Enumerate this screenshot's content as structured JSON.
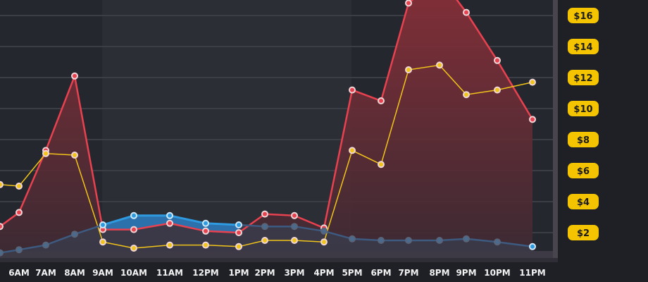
{
  "chart_data": {
    "type": "area",
    "title": "",
    "xlabel": "",
    "ylabel": "",
    "categories": [
      "",
      "6AM",
      "7AM",
      "8AM",
      "9AM",
      "10AM",
      "11AM",
      "12PM",
      "1PM",
      "2PM",
      "3PM",
      "4PM",
      "5PM",
      "6PM",
      "7PM",
      "8PM",
      "9PM",
      "10PM",
      "11PM"
    ],
    "y_ticks": [
      "$2",
      "$4",
      "$6",
      "$8",
      "$10",
      "$12",
      "$14",
      "$16"
    ],
    "y_tick_values": [
      2,
      4,
      6,
      8,
      10,
      12,
      14,
      16
    ],
    "ylim": [
      0,
      17
    ],
    "y_axis_position": "right",
    "grid": true,
    "highlighted_range": [
      "9AM",
      "4PM"
    ],
    "series": [
      {
        "color": "#e8414f",
        "fill": true,
        "values": [
          2.4,
          3.3,
          7.3,
          12.1,
          2.2,
          2.2,
          2.6,
          2.1,
          2.0,
          3.2,
          3.1,
          2.3,
          11.2,
          10.5,
          16.8,
          18.5,
          16.2,
          13.1,
          9.3
        ]
      },
      {
        "color": "#f0c419",
        "fill": false,
        "values": [
          5.1,
          5.0,
          7.1,
          7.0,
          1.4,
          1.0,
          1.2,
          1.2,
          1.1,
          1.5,
          1.5,
          1.4,
          7.3,
          6.4,
          12.5,
          12.8,
          10.9,
          11.2,
          11.7
        ]
      },
      {
        "color": "#3d5a80",
        "highlight_color": "#2e9be0",
        "fill": true,
        "values": [
          0.7,
          0.9,
          1.2,
          1.9,
          2.5,
          3.1,
          3.1,
          2.6,
          2.5,
          2.4,
          2.4,
          2.1,
          1.6,
          1.5,
          1.5,
          1.5,
          1.6,
          1.4,
          1.1
        ]
      }
    ]
  },
  "colors": {
    "background": "#25272e",
    "axis_pill": "#f5c400"
  }
}
